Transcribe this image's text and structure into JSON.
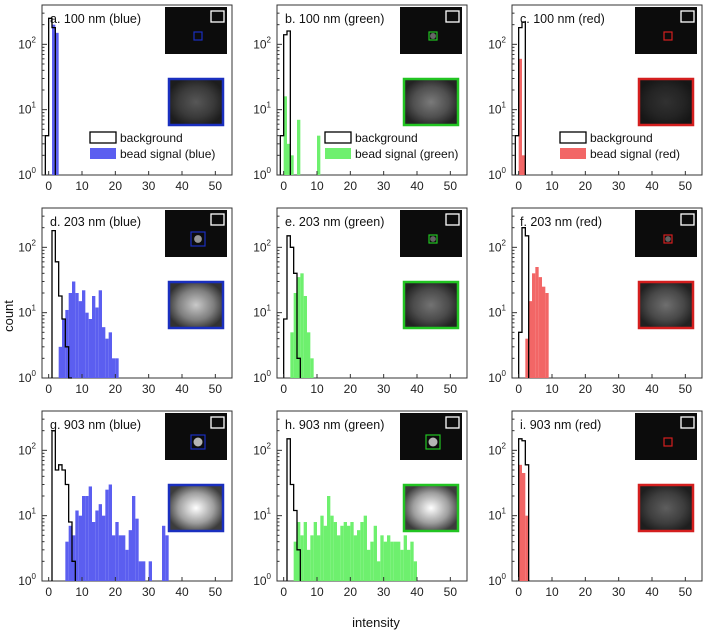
{
  "figure": {
    "xlabel": "intensity",
    "ylabel": "count"
  },
  "legend": {
    "background": "background"
  },
  "colors": {
    "blue": "#5b5ef0",
    "green": "#6ef06e",
    "red": "#f26666",
    "frame_blue": "#1a2fbf",
    "frame_green": "#22c422",
    "frame_red": "#d41f1f"
  },
  "chart_data": [
    {
      "type": "bar",
      "title": "a. 100 nm (blue)",
      "color": "blue",
      "xlim": [
        -2,
        55
      ],
      "xticks": [
        0,
        10,
        20,
        30,
        40,
        50
      ],
      "yscale": "log",
      "ylim": [
        1,
        400
      ],
      "yticks": [
        "10^0",
        "10^1",
        "10^2"
      ],
      "legend": [
        "background",
        "bead signal (blue)"
      ],
      "background": {
        "edges": [
          -1,
          0,
          1,
          2
        ],
        "counts": [
          4,
          250,
          180
        ]
      },
      "signal": {
        "edges": [
          1,
          2,
          3
        ],
        "counts": [
          200,
          150
        ]
      },
      "inset_zoom_brightness": 0.22
    },
    {
      "type": "bar",
      "title": "b. 100 nm (green)",
      "color": "green",
      "xlim": [
        -2,
        55
      ],
      "xticks": [
        0,
        10,
        20,
        30,
        40,
        50
      ],
      "yscale": "log",
      "ylim": [
        1,
        400
      ],
      "yticks": [
        "10^0",
        "10^1",
        "10^2"
      ],
      "legend": [
        "background",
        "bead signal (green)"
      ],
      "background": {
        "edges": [
          -1,
          0,
          1,
          2
        ],
        "counts": [
          4,
          140,
          160
        ]
      },
      "signal": {
        "edges": [
          0,
          1,
          2,
          3,
          4,
          5,
          6,
          7,
          8,
          9,
          10,
          11
        ],
        "counts": [
          16,
          3,
          2,
          1,
          7,
          1,
          1,
          1,
          1,
          1,
          4
        ]
      },
      "inset_zoom_brightness": 0.38
    },
    {
      "type": "bar",
      "title": "c. 100 nm (red)",
      "color": "red",
      "xlim": [
        -2,
        55
      ],
      "xticks": [
        0,
        10,
        20,
        30,
        40,
        50
      ],
      "yscale": "log",
      "ylim": [
        1,
        400
      ],
      "yticks": [
        "10^0",
        "10^1",
        "10^2"
      ],
      "legend": [
        "background",
        "bead signal (red)"
      ],
      "background": {
        "edges": [
          -1,
          0,
          1,
          2
        ],
        "counts": [
          4,
          180,
          220
        ]
      },
      "signal": {
        "edges": [
          0,
          1,
          2
        ],
        "counts": [
          60,
          2
        ]
      },
      "inset_zoom_brightness": 0.04
    },
    {
      "type": "bar",
      "title": "d. 203 nm (blue)",
      "color": "blue",
      "xlim": [
        -2,
        55
      ],
      "xticks": [
        0,
        10,
        20,
        30,
        40,
        50
      ],
      "yscale": "log",
      "ylim": [
        1,
        400
      ],
      "yticks": [
        "10^0",
        "10^1",
        "10^2"
      ],
      "background": {
        "edges": [
          1,
          2,
          3,
          4,
          5,
          6,
          7
        ],
        "counts": [
          180,
          60,
          18,
          8,
          3,
          1
        ]
      },
      "signal": {
        "edges": [
          3,
          4,
          5,
          6,
          7,
          8,
          9,
          10,
          11,
          12,
          13,
          14,
          15,
          16,
          17,
          18,
          19,
          20,
          21
        ],
        "counts": [
          3,
          8,
          11,
          20,
          30,
          20,
          15,
          22,
          10,
          8,
          18,
          12,
          22,
          6,
          4,
          5,
          2,
          2
        ]
      },
      "inset_zoom_brightness": 0.75
    },
    {
      "type": "bar",
      "title": "e. 203 nm (green)",
      "color": "green",
      "xlim": [
        -2,
        55
      ],
      "xticks": [
        0,
        10,
        20,
        30,
        40,
        50
      ],
      "yscale": "log",
      "ylim": [
        1,
        400
      ],
      "yticks": [
        "10^0",
        "10^1",
        "10^2"
      ],
      "background": {
        "edges": [
          0,
          1,
          2,
          3,
          4,
          5
        ],
        "counts": [
          8,
          150,
          100,
          40,
          2
        ]
      },
      "signal": {
        "edges": [
          2,
          3,
          4,
          5,
          6,
          7,
          8,
          9
        ],
        "counts": [
          5,
          20,
          35,
          40,
          18,
          5,
          2
        ]
      },
      "inset_zoom_brightness": 0.35
    },
    {
      "type": "bar",
      "title": "f. 203 nm (red)",
      "color": "red",
      "xlim": [
        -2,
        55
      ],
      "xticks": [
        0,
        10,
        20,
        30,
        40,
        50
      ],
      "yscale": "log",
      "ylim": [
        1,
        400
      ],
      "yticks": [
        "10^0",
        "10^1",
        "10^2"
      ],
      "background": {
        "edges": [
          0,
          1,
          2,
          3
        ],
        "counts": [
          5,
          200,
          150
        ]
      },
      "signal": {
        "edges": [
          2,
          3,
          4,
          5,
          6,
          7,
          8,
          9
        ],
        "counts": [
          4,
          15,
          40,
          50,
          35,
          25,
          20
        ]
      },
      "inset_zoom_brightness": 0.33
    },
    {
      "type": "bar",
      "title": "g. 903 nm (blue)",
      "color": "blue",
      "xlim": [
        -2,
        55
      ],
      "xticks": [
        0,
        10,
        20,
        30,
        40,
        50
      ],
      "yscale": "log",
      "ylim": [
        1,
        400
      ],
      "yticks": [
        "10^0",
        "10^1",
        "10^2"
      ],
      "background": {
        "edges": [
          1,
          2,
          3,
          4,
          5,
          6,
          7,
          8
        ],
        "counts": [
          200,
          50,
          60,
          50,
          30,
          8,
          2
        ]
      },
      "signal": {
        "edges": [
          5,
          6,
          7,
          8,
          9,
          10,
          11,
          12,
          13,
          14,
          15,
          16,
          17,
          18,
          19,
          20,
          21,
          22,
          23,
          24,
          25,
          26,
          27,
          28,
          29,
          30,
          31,
          32,
          33,
          34,
          35,
          36
        ],
        "counts": [
          4,
          7,
          5,
          12,
          10,
          20,
          20,
          28,
          8,
          12,
          15,
          10,
          25,
          30,
          5,
          8,
          5,
          5,
          3,
          6,
          20,
          9,
          2,
          2,
          1,
          2,
          1,
          1,
          1,
          7,
          5
        ]
      },
      "inset_zoom_brightness": 1.0
    },
    {
      "type": "bar",
      "title": "h. 903 nm (green)",
      "color": "green",
      "xlim": [
        -2,
        55
      ],
      "xticks": [
        0,
        10,
        20,
        30,
        40,
        50
      ],
      "yscale": "log",
      "ylim": [
        1,
        400
      ],
      "yticks": [
        "10^0",
        "10^1",
        "10^2"
      ],
      "background": {
        "edges": [
          1,
          2,
          3,
          4,
          5
        ],
        "counts": [
          150,
          30,
          12,
          3
        ]
      },
      "signal": {
        "edges": [
          3,
          4,
          5,
          6,
          7,
          8,
          9,
          10,
          11,
          12,
          13,
          14,
          15,
          16,
          17,
          18,
          19,
          20,
          21,
          22,
          23,
          24,
          25,
          26,
          27,
          28,
          29,
          30,
          31,
          32,
          33,
          34,
          35,
          36,
          37,
          38,
          39,
          40
        ],
        "counts": [
          4,
          8,
          5,
          8,
          3,
          5,
          8,
          5,
          10,
          7,
          20,
          10,
          8,
          5,
          7,
          8,
          7,
          8,
          5,
          6,
          8,
          10,
          3,
          4,
          7,
          2,
          5,
          4,
          5,
          4,
          4,
          4,
          3,
          5,
          3,
          4,
          2
        ]
      },
      "inset_zoom_brightness": 1.0
    },
    {
      "type": "bar",
      "title": "i. 903 nm (red)",
      "color": "red",
      "xlim": [
        -2,
        55
      ],
      "xticks": [
        0,
        10,
        20,
        30,
        40,
        50
      ],
      "yscale": "log",
      "ylim": [
        1,
        400
      ],
      "yticks": [
        "10^0",
        "10^1",
        "10^2"
      ],
      "background": {
        "edges": [
          0,
          1,
          2,
          3
        ],
        "counts": [
          150,
          140,
          60
        ]
      },
      "signal": {
        "edges": [
          0,
          1,
          2,
          3
        ],
        "counts": [
          60,
          45,
          10
        ]
      },
      "inset_zoom_brightness": 0.25
    }
  ]
}
